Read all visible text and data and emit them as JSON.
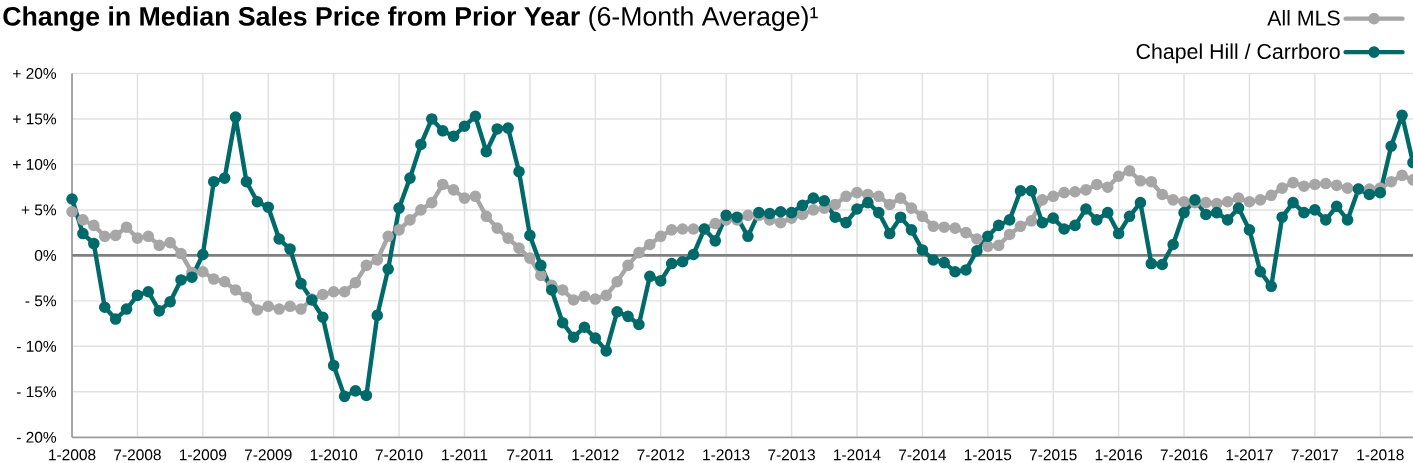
{
  "chart_data": {
    "type": "line",
    "title": "**Change in Median Sales Price from Prior Year** (6-Month Average)¹",
    "x": [
      "2008-01",
      "2008-02",
      "2008-03",
      "2008-04",
      "2008-05",
      "2008-06",
      "2008-07",
      "2008-08",
      "2008-09",
      "2008-10",
      "2008-11",
      "2008-12",
      "2009-01",
      "2009-02",
      "2009-03",
      "2009-04",
      "2009-05",
      "2009-06",
      "2009-07",
      "2009-08",
      "2009-09",
      "2009-10",
      "2009-11",
      "2009-12",
      "2010-01",
      "2010-02",
      "2010-03",
      "2010-04",
      "2010-05",
      "2010-06",
      "2010-07",
      "2010-08",
      "2010-09",
      "2010-10",
      "2010-11",
      "2010-12",
      "2011-01",
      "2011-02",
      "2011-03",
      "2011-04",
      "2011-05",
      "2011-06",
      "2011-07",
      "2011-08",
      "2011-09",
      "2011-10",
      "2011-11",
      "2011-12",
      "2012-01",
      "2012-02",
      "2012-03",
      "2012-04",
      "2012-05",
      "2012-06",
      "2012-07",
      "2012-08",
      "2012-09",
      "2012-10",
      "2012-11",
      "2012-12",
      "2013-01",
      "2013-02",
      "2013-03",
      "2013-04",
      "2013-05",
      "2013-06",
      "2013-07",
      "2013-08",
      "2013-09",
      "2013-10",
      "2013-11",
      "2013-12",
      "2014-01",
      "2014-02",
      "2014-03",
      "2014-04",
      "2014-05",
      "2014-06",
      "2014-07",
      "2014-08",
      "2014-09",
      "2014-10",
      "2014-11",
      "2014-12",
      "2015-01",
      "2015-02",
      "2015-03",
      "2015-04",
      "2015-05",
      "2015-06",
      "2015-07",
      "2015-08",
      "2015-09",
      "2015-10",
      "2015-11",
      "2015-12",
      "2016-01",
      "2016-02",
      "2016-03",
      "2016-04",
      "2016-05",
      "2016-06",
      "2016-07",
      "2016-08",
      "2016-09",
      "2016-10",
      "2016-11",
      "2016-12",
      "2017-01",
      "2017-02",
      "2017-03",
      "2017-04",
      "2017-05",
      "2017-06",
      "2017-07",
      "2017-08",
      "2017-09",
      "2017-10",
      "2017-11",
      "2017-12",
      "2018-01",
      "2018-02",
      "2018-03",
      "2018-04"
    ],
    "series": [
      {
        "name": "All MLS",
        "color": "#a6a6a6",
        "values": [
          4.8,
          3.9,
          3.3,
          2.1,
          2.2,
          3.1,
          1.9,
          2.1,
          1.1,
          1.4,
          0.2,
          -1.9,
          -1.8,
          -2.6,
          -2.9,
          -3.8,
          -4.6,
          -6.0,
          -5.6,
          -5.9,
          -5.6,
          -5.9,
          -4.8,
          -4.3,
          -4.0,
          -4.0,
          -3.0,
          -1.1,
          -0.5,
          2.1,
          2.8,
          3.9,
          5.0,
          5.8,
          7.8,
          7.2,
          6.3,
          6.5,
          4.3,
          3.0,
          1.9,
          0.8,
          -0.3,
          -2.2,
          -3.3,
          -3.8,
          -4.9,
          -4.5,
          -4.8,
          -4.4,
          -2.9,
          -1.1,
          0.3,
          1.2,
          2.1,
          2.8,
          2.9,
          2.9,
          2.9,
          3.5,
          3.9,
          3.9,
          4.4,
          4.4,
          3.9,
          3.6,
          4.1,
          4.5,
          5.0,
          5.2,
          5.6,
          6.5,
          6.9,
          6.7,
          6.5,
          5.6,
          6.3,
          5.2,
          4.3,
          3.2,
          3.1,
          3.0,
          2.5,
          1.8,
          1.0,
          1.1,
          2.3,
          3.2,
          3.8,
          6.1,
          6.5,
          6.9,
          7.0,
          7.2,
          7.8,
          7.5,
          8.7,
          9.3,
          8.2,
          8.1,
          6.7,
          6.1,
          5.9,
          5.8,
          5.8,
          5.7,
          5.9,
          6.3,
          5.9,
          6.1,
          6.6,
          7.4,
          8.0,
          7.6,
          7.8,
          7.9,
          7.7,
          7.4,
          7.3,
          7.3,
          7.4,
          8.1,
          8.8,
          8.3
        ]
      },
      {
        "name": "Chapel Hill / Carrboro",
        "color": "#006a6b",
        "values": [
          6.2,
          2.4,
          1.3,
          -5.7,
          -7.0,
          -5.9,
          -4.4,
          -4.0,
          -6.1,
          -5.1,
          -2.7,
          -2.4,
          0.1,
          8.1,
          8.5,
          15.2,
          8.1,
          5.9,
          5.3,
          1.8,
          0.7,
          -3.1,
          -4.9,
          -6.8,
          -12.1,
          -15.5,
          -14.9,
          -15.4,
          -6.6,
          -1.5,
          5.2,
          8.5,
          12.2,
          15.0,
          13.7,
          13.1,
          14.2,
          15.3,
          11.4,
          13.9,
          14.0,
          9.2,
          2.2,
          -1.1,
          -3.8,
          -7.4,
          -9.0,
          -7.9,
          -9.1,
          -10.5,
          -6.2,
          -6.7,
          -7.6,
          -2.3,
          -2.8,
          -0.9,
          -0.7,
          0.1,
          2.9,
          1.6,
          4.4,
          4.2,
          2.1,
          4.7,
          4.6,
          4.8,
          4.7,
          5.5,
          6.3,
          6.0,
          4.2,
          3.6,
          5.1,
          5.8,
          4.7,
          2.4,
          4.2,
          2.8,
          0.6,
          -0.5,
          -0.8,
          -1.8,
          -1.6,
          0.5,
          2.1,
          3.3,
          3.9,
          7.1,
          7.1,
          3.6,
          4.1,
          2.9,
          3.3,
          5.1,
          3.9,
          4.7,
          2.4,
          4.3,
          5.8,
          -0.9,
          -1.0,
          1.2,
          4.7,
          6.1,
          4.5,
          4.7,
          3.9,
          5.2,
          2.8,
          -1.8,
          -3.4,
          4.2,
          5.8,
          4.7,
          5.0,
          3.9,
          5.4,
          3.9,
          7.3,
          6.7,
          6.9,
          12.0,
          15.4,
          10.2
        ]
      }
    ],
    "xlim": [
      "2008-01",
      "2018-04"
    ],
    "xticks": [
      {
        "value": "2008-01",
        "label": "1-2008"
      },
      {
        "value": "2008-07",
        "label": "7-2008"
      },
      {
        "value": "2009-01",
        "label": "1-2009"
      },
      {
        "value": "2009-07",
        "label": "7-2009"
      },
      {
        "value": "2010-01",
        "label": "1-2010"
      },
      {
        "value": "2010-07",
        "label": "7-2010"
      },
      {
        "value": "2011-01",
        "label": "1-2011"
      },
      {
        "value": "2011-07",
        "label": "7-2011"
      },
      {
        "value": "2012-01",
        "label": "1-2012"
      },
      {
        "value": "2012-07",
        "label": "7-2012"
      },
      {
        "value": "2013-01",
        "label": "1-2013"
      },
      {
        "value": "2013-07",
        "label": "7-2013"
      },
      {
        "value": "2014-01",
        "label": "1-2014"
      },
      {
        "value": "2014-07",
        "label": "7-2014"
      },
      {
        "value": "2015-01",
        "label": "1-2015"
      },
      {
        "value": "2015-07",
        "label": "7-2015"
      },
      {
        "value": "2016-01",
        "label": "1-2016"
      },
      {
        "value": "2016-07",
        "label": "7-2016"
      },
      {
        "value": "2017-01",
        "label": "1-2017"
      },
      {
        "value": "2017-07",
        "label": "7-2017"
      },
      {
        "value": "2018-01",
        "label": "1-2018"
      }
    ],
    "ylim": [
      -20,
      20
    ],
    "yticks": [
      {
        "value": -20,
        "label": "- 20%"
      },
      {
        "value": -15,
        "label": "- 15%"
      },
      {
        "value": -10,
        "label": "- 10%"
      },
      {
        "value": -5,
        "label": "- 5%"
      },
      {
        "value": 0,
        "label": "0%"
      },
      {
        "value": 5,
        "label": "+ 5%"
      },
      {
        "value": 10,
        "label": "+ 10%"
      },
      {
        "value": 15,
        "label": "+ 15%"
      },
      {
        "value": 20,
        "label": "+ 20%"
      }
    ],
    "ref_lines": [
      {
        "axis": "y",
        "value": 0,
        "color": "#808080"
      }
    ],
    "grid": true,
    "legend": "top right",
    "marker": "circle",
    "line_style": "solid"
  }
}
